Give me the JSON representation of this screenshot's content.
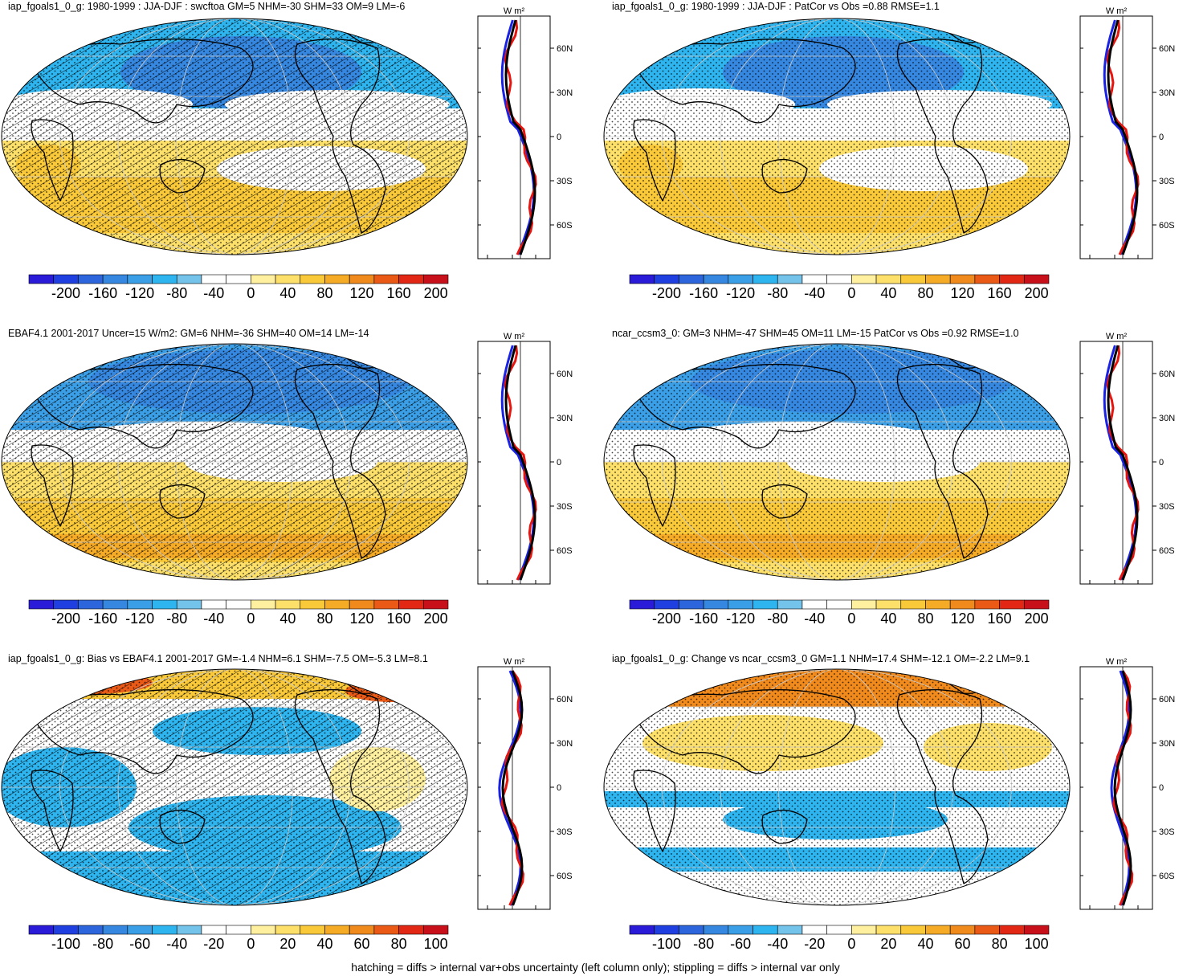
{
  "footer": "hatching = diffs > internal var+obs uncertainty (left column only); stippling = diffs > internal var only",
  "units_label": "W m²",
  "lat_labels": [
    "60N",
    "30N",
    "0",
    "30S",
    "60S"
  ],
  "colors": {
    "scale": [
      "#2a1bd8",
      "#1f3fe0",
      "#2d66dc",
      "#3587e0",
      "#3a9fe6",
      "#2eb4ee",
      "#73c3eb",
      "#ffffff",
      "#ffffff",
      "#fff0a0",
      "#fde06a",
      "#f9c93a",
      "#f5ab26",
      "#f08a1c",
      "#ea5a16",
      "#e22814",
      "#c8101a"
    ],
    "land_outline": "#000000",
    "zonal_red": "#e8150f",
    "zonal_blue": "#1a22e6",
    "zonal_black": "#000000"
  },
  "panels": [
    {
      "id": "top-left",
      "title": "iap_fgoals1_0_g: 1980-1999 : JJA-DJF : swcftoa GM=5 NHM=-30 SHM=33 OM=9 LM=-6",
      "colorbar_labels": [
        "-200",
        "-160",
        "-120",
        "-80",
        "-40",
        "0",
        "40",
        "80",
        "120",
        "160",
        "200"
      ],
      "zonal_ticks": [
        "-120",
        "-40",
        "40"
      ],
      "hatching": true
    },
    {
      "id": "top-right",
      "title": "iap_fgoals1_0_g: 1980-1999 : JJA-DJF : PatCor vs Obs =0.88 RMSE=1.1",
      "colorbar_labels": [
        "-200",
        "-160",
        "-120",
        "-80",
        "-40",
        "0",
        "40",
        "80",
        "120",
        "160",
        "200"
      ],
      "zonal_ticks": [
        "-120",
        "-40",
        "40"
      ],
      "hatching": false
    },
    {
      "id": "middle-left",
      "title": "EBAF4.1 2001-2017 Uncer=15 W/m2: GM=6 NHM=-36 SHM=40 OM=14 LM=-14",
      "colorbar_labels": [
        "-200",
        "-160",
        "-120",
        "-80",
        "-40",
        "0",
        "40",
        "80",
        "120",
        "160",
        "200"
      ],
      "zonal_ticks": [
        "-120",
        "-40",
        "40"
      ],
      "hatching": true
    },
    {
      "id": "middle-right",
      "title": "ncar_ccsm3_0: GM=3 NHM=-47 SHM=45 OM=11 LM=-15 PatCor vs Obs =0.92 RMSE=1.0",
      "colorbar_labels": [
        "-200",
        "-160",
        "-120",
        "-80",
        "-40",
        "0",
        "40",
        "80",
        "120",
        "160",
        "200"
      ],
      "zonal_ticks": [
        "-120",
        "-40",
        "40"
      ],
      "hatching": false
    },
    {
      "id": "bottom-left",
      "title": "iap_fgoals1_0_g: Bias vs EBAF4.1 2001-2017 GM=-1.4 NHM=6.1 SHM=-7.5 OM=-5.3 LM=8.1",
      "colorbar_labels": [
        "-100",
        "-80",
        "-60",
        "-40",
        "-20",
        "0",
        "20",
        "40",
        "60",
        "80",
        "100"
      ],
      "zonal_ticks": [
        "-40",
        "0",
        "40"
      ],
      "hatching": true
    },
    {
      "id": "bottom-right",
      "title": "iap_fgoals1_0_g: Change vs ncar_ccsm3_0 GM=1.1 NHM=17.4 SHM=-12.1 OM=-2.2 LM=9.1",
      "colorbar_labels": [
        "-100",
        "-80",
        "-60",
        "-40",
        "-20",
        "0",
        "20",
        "40",
        "60",
        "80",
        "100"
      ],
      "zonal_ticks": [
        "-60",
        "0",
        "60"
      ],
      "hatching": false
    }
  ]
}
